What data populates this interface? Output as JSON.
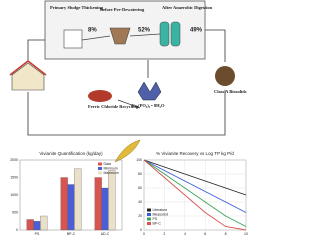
{
  "diagram": {
    "labels": [
      "Primary Sludge Thickening",
      "Before Pre-Dewatering",
      "After Anaerobic Digestion",
      "8%",
      "52%",
      "49%",
      "Class A Biosolids",
      "Ferric Chloride Recycling",
      "Fe₃(PO₄)₂ • 8H₂O"
    ]
  },
  "chart_data": [
    {
      "type": "bar",
      "title": "Vivianite Quantification (kg/day)",
      "categories": [
        "PS",
        "BP-C",
        "AD-C"
      ],
      "series": [
        {
          "name": "Data",
          "color": "#d9534f",
          "values": [
            300,
            1500,
            1500
          ]
        },
        {
          "name": "Minimum",
          "color": "#4a5fd6",
          "values": [
            250,
            1300,
            1200
          ]
        },
        {
          "name": "Maximum",
          "color": "#eadfc8",
          "values": [
            400,
            1750,
            1700
          ]
        }
      ],
      "ylim": [
        0,
        2000
      ],
      "yticks": [
        0,
        500,
        1000,
        1500,
        2000
      ],
      "legend": "top-right"
    },
    {
      "type": "line",
      "title": "% Vivianite Recovery vs Log TP kg P/d",
      "x": [
        0,
        2,
        4,
        6,
        8,
        10
      ],
      "series": [
        {
          "name": "Literature",
          "color": "#222222",
          "values": [
            100,
            90,
            80,
            70,
            60,
            50
          ]
        },
        {
          "name": "Measured",
          "color": "#3a5bd9",
          "values": [
            100,
            85,
            70,
            55,
            40,
            25
          ]
        },
        {
          "name": "PS",
          "color": "#3aa655",
          "values": [
            100,
            80,
            60,
            40,
            20,
            5
          ]
        },
        {
          "name": "BP-C",
          "color": "#d9534f",
          "values": [
            100,
            75,
            50,
            25,
            5,
            0
          ]
        }
      ],
      "xlim": [
        0,
        10
      ],
      "xticks": [
        0,
        2,
        4,
        6,
        8,
        10
      ],
      "ylim": [
        0,
        100
      ],
      "yticks": [
        0,
        20,
        40,
        60,
        80,
        100
      ],
      "grid": true,
      "legend": "bottom-left"
    }
  ]
}
